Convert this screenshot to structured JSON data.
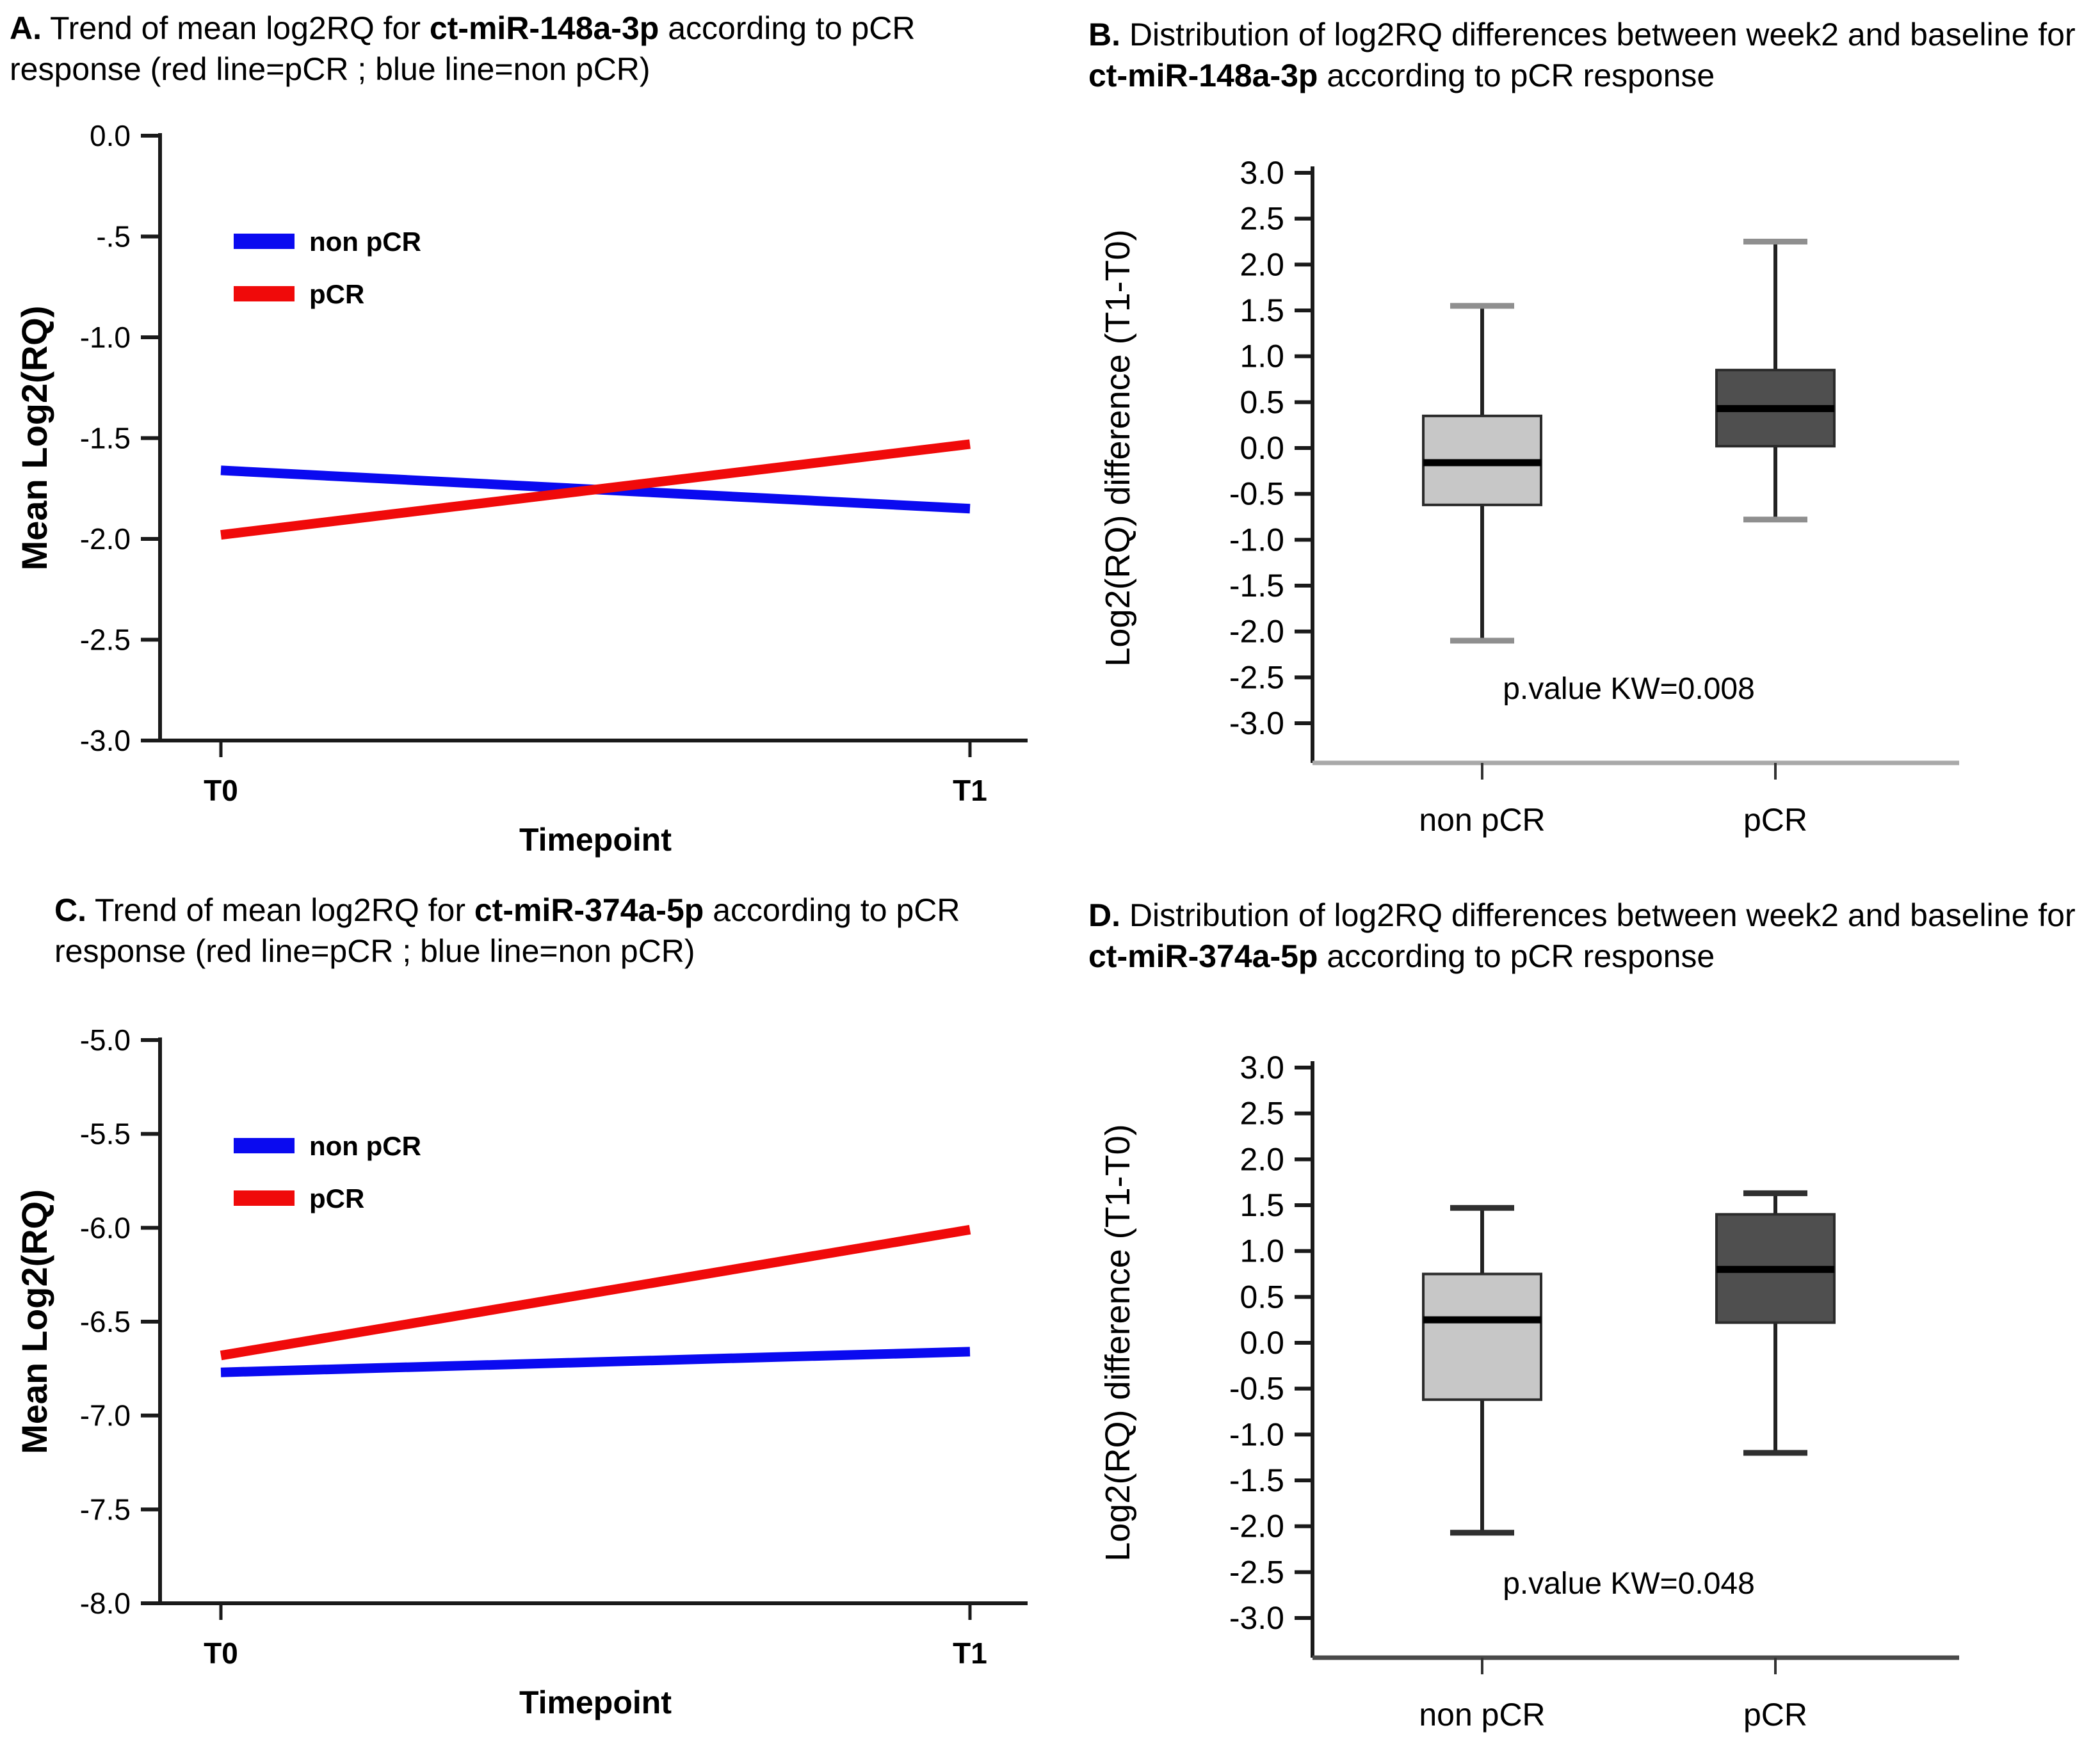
{
  "page": {
    "background": "#ffffff"
  },
  "panels": {
    "a": {
      "title": {
        "letter": "A.",
        "pre": " Trend of mean log2RQ for ",
        "gene": "ct-miR-148a-3p",
        "post": " according to pCR response (red line=pCR ; blue line=non pCR)"
      }
    },
    "b": {
      "title": {
        "letter": "B.",
        "pre": " Distribution of  log2RQ differences between week2 and baseline for ",
        "gene": "ct-miR-148a-3p",
        "post": " according to pCR response"
      }
    },
    "c": {
      "title": {
        "letter": "C.",
        "pre": " Trend of mean log2RQ for ",
        "gene": "ct-miR-374a-5p",
        "post": " according to pCR response (red line=pCR ; blue line=non pCR)"
      }
    },
    "d": {
      "title": {
        "letter": "D.",
        "pre": " Distribution of  log2RQ differences between week2 and baseline for ",
        "gene": "ct-miR-374a-5p",
        "post": " according to pCR response"
      }
    }
  },
  "chart_data": [
    {
      "panel": "A",
      "type": "line",
      "xlabel": "Timepoint",
      "ylabel": "Mean Log2(RQ)",
      "x_categories": [
        "T0",
        "T1"
      ],
      "ylim": [
        -3.0,
        0.0
      ],
      "ytick_values": [
        0.0,
        -0.5,
        -1.0,
        -1.5,
        -2.0,
        -2.5,
        -3.0
      ],
      "ytick_labels": [
        "0.0",
        "-.5",
        "-1.0",
        "-1.5",
        "-2.0",
        "-2.5",
        "-3.0"
      ],
      "legend_position": "top-left-inside",
      "series": [
        {
          "name": "non pCR",
          "color": "#0a0af0",
          "values": [
            -1.66,
            -1.85
          ]
        },
        {
          "name": "pCR",
          "color": "#f00a0a",
          "values": [
            -1.98,
            -1.53
          ]
        }
      ]
    },
    {
      "panel": "B",
      "type": "box",
      "ylabel": "Log2(RQ) difference (T1-T0)",
      "categories": [
        "non pCR",
        "pCR"
      ],
      "ylim": [
        -3.0,
        3.0
      ],
      "ytick_values": [
        3.0,
        2.5,
        2.0,
        1.5,
        1.0,
        0.5,
        0.0,
        -0.5,
        -1.0,
        -1.5,
        -2.0,
        -2.5,
        -3.0
      ],
      "ytick_labels": [
        "3.0",
        "2.5",
        "2.0",
        "1.5",
        "1.0",
        "0.5",
        "0.0",
        "-0.5",
        "-1.0",
        "-1.5",
        "-2.0",
        "-2.5",
        "-3.0"
      ],
      "boxes": [
        {
          "name": "non pCR",
          "fill": "#c7c7c7",
          "whisker_low": -2.1,
          "q1": -0.62,
          "median": -0.16,
          "q3": 0.35,
          "whisker_high": 1.55
        },
        {
          "name": "pCR",
          "fill": "#4f4f4f",
          "whisker_low": -0.78,
          "q1": 0.02,
          "median": 0.43,
          "q3": 0.85,
          "whisker_high": 2.25
        }
      ],
      "annotation": "p.value KW=0.008",
      "cap_color": "#8f8f8f",
      "baseline_color": "#a9a9a9"
    },
    {
      "panel": "C",
      "type": "line",
      "xlabel": "Timepoint",
      "ylabel": "Mean Log2(RQ)",
      "x_categories": [
        "T0",
        "T1"
      ],
      "ylim": [
        -8.0,
        -5.0
      ],
      "ytick_values": [
        -5.0,
        -5.5,
        -6.0,
        -6.5,
        -7.0,
        -7.5,
        -8.0
      ],
      "ytick_labels": [
        "-5.0",
        "-5.5",
        "-6.0",
        "-6.5",
        "-7.0",
        "-7.5",
        "-8.0"
      ],
      "legend_position": "top-left-inside",
      "series": [
        {
          "name": "non pCR",
          "color": "#0a0af0",
          "values": [
            -6.77,
            -6.66
          ]
        },
        {
          "name": "pCR",
          "color": "#f00a0a",
          "values": [
            -6.68,
            -6.01
          ]
        }
      ]
    },
    {
      "panel": "D",
      "type": "box",
      "ylabel": "Log2(RQ) difference (T1-T0)",
      "categories": [
        "non pCR",
        "pCR"
      ],
      "ylim": [
        -3.0,
        3.0
      ],
      "ytick_values": [
        3.0,
        2.5,
        2.0,
        1.5,
        1.0,
        0.5,
        0.0,
        -0.5,
        -1.0,
        -1.5,
        -2.0,
        -2.5,
        -3.0
      ],
      "ytick_labels": [
        "3.0",
        "2.5",
        "2.0",
        "1.5",
        "1.0",
        "0.5",
        "0.0",
        "-0.5",
        "-1.0",
        "-1.5",
        "-2.0",
        "-2.5",
        "-3.0"
      ],
      "boxes": [
        {
          "name": "non pCR",
          "fill": "#c7c7c7",
          "whisker_low": -2.07,
          "q1": -0.62,
          "median": 0.25,
          "q3": 0.75,
          "whisker_high": 1.47
        },
        {
          "name": "pCR",
          "fill": "#4f4f4f",
          "whisker_low": -1.2,
          "q1": 0.22,
          "median": 0.8,
          "q3": 1.4,
          "whisker_high": 1.63
        }
      ],
      "annotation": "p.value KW=0.048",
      "cap_color": "#2f2f2f",
      "baseline_color": "#4a4a4a"
    }
  ]
}
